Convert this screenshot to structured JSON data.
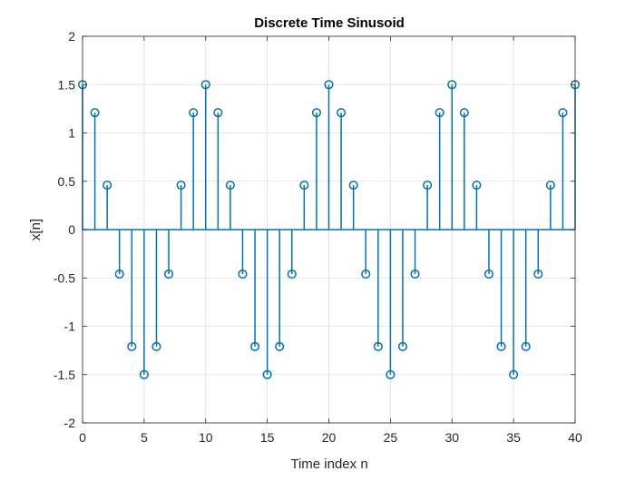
{
  "chart_data": {
    "type": "stem",
    "title": "Discrete Time Sinusoid",
    "xlabel": "Time index n",
    "ylabel": "x[n]",
    "xlim": [
      0,
      40
    ],
    "ylim": [
      -2,
      2
    ],
    "xticks": [
      0,
      5,
      10,
      15,
      20,
      25,
      30,
      35,
      40
    ],
    "xtick_labels": [
      "0",
      "5",
      "10",
      "15",
      "20",
      "25",
      "30",
      "35",
      "40"
    ],
    "yticks": [
      -2,
      -1.5,
      -1,
      -0.5,
      0,
      0.5,
      1,
      1.5,
      2
    ],
    "ytick_labels": [
      "-2",
      "-1.5",
      "-1",
      "-0.5",
      "0",
      "0.5",
      "1",
      "1.5",
      "2"
    ],
    "grid": true,
    "legend": "none",
    "series": [
      {
        "color": "#0072BD",
        "x": [
          0,
          1,
          2,
          3,
          4,
          5,
          6,
          7,
          8,
          9,
          10,
          11,
          12,
          13,
          14,
          15,
          16,
          17,
          18,
          19,
          20,
          21,
          22,
          23,
          24,
          25,
          26,
          27,
          28,
          29,
          30,
          31,
          32,
          33,
          34,
          35,
          36,
          37,
          38,
          39,
          40
        ],
        "y": [
          1.5,
          1.21,
          0.46,
          -0.46,
          -1.21,
          -1.5,
          -1.21,
          -0.46,
          0.46,
          1.21,
          1.5,
          1.21,
          0.46,
          -0.46,
          -1.21,
          -1.5,
          -1.21,
          -0.46,
          0.46,
          1.21,
          1.5,
          1.21,
          0.46,
          -0.46,
          -1.21,
          -1.5,
          -1.21,
          -0.46,
          0.46,
          1.21,
          1.5,
          1.21,
          0.46,
          -0.46,
          -1.21,
          -1.5,
          -1.21,
          -0.46,
          0.46,
          1.21,
          1.5
        ]
      }
    ]
  }
}
